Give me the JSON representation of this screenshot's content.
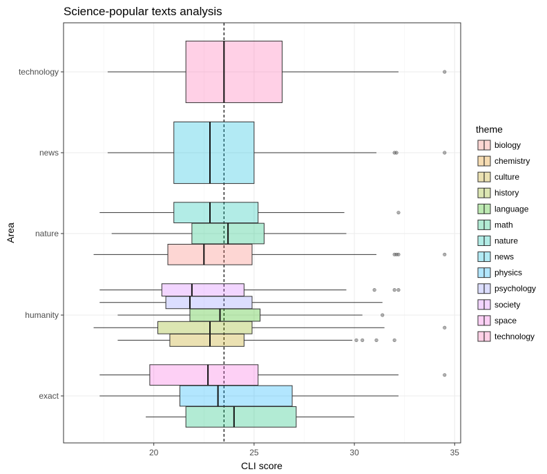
{
  "chart_data": {
    "type": "boxplot",
    "title": "Science-popular texts analysis",
    "xlabel": "CLI score",
    "ylabel": "Area",
    "xlim": [
      15.5,
      35.3
    ],
    "xticks": [
      20,
      25,
      30,
      35
    ],
    "reference_line_x": 23.5,
    "grid": true,
    "legend_title": "theme",
    "legend_position": "right",
    "theme_colors": {
      "biology": "#F8766D",
      "chemistry": "#E18A00",
      "culture": "#BE9C00",
      "history": "#8CAB00",
      "language": "#24B700",
      "math": "#00BE70",
      "nature": "#00C1AB",
      "news": "#00BBDA",
      "physics": "#00ACFC",
      "psychology": "#8B93FF",
      "society": "#D575FE",
      "space": "#F962DD",
      "technology": "#FF65AC"
    },
    "categories": [
      "technology",
      "news",
      "nature",
      "humanity",
      "exact"
    ],
    "groups": [
      {
        "area": "technology",
        "boxes": [
          {
            "theme": "technology",
            "whisker_low": 17.7,
            "q1": 21.6,
            "median": 23.5,
            "q3": 26.4,
            "whisker_high": 32.2,
            "outliers": [
              34.5
            ]
          }
        ]
      },
      {
        "area": "news",
        "boxes": [
          {
            "theme": "news",
            "whisker_low": 17.7,
            "q1": 21.0,
            "median": 22.8,
            "q3": 25.0,
            "whisker_high": 31.1,
            "outliers": [
              32.0,
              32.1,
              34.5
            ]
          }
        ]
      },
      {
        "area": "nature",
        "boxes": [
          {
            "theme": "nature",
            "whisker_low": 17.3,
            "q1": 21.0,
            "median": 22.8,
            "q3": 25.2,
            "whisker_high": 29.5,
            "outliers": [
              32.2
            ]
          },
          {
            "theme": "math",
            "whisker_low": 17.9,
            "q1": 21.9,
            "median": 23.7,
            "q3": 25.5,
            "whisker_high": 29.6,
            "outliers": []
          },
          {
            "theme": "biology",
            "whisker_low": 17.0,
            "q1": 20.7,
            "median": 22.5,
            "q3": 24.9,
            "whisker_high": 31.1,
            "outliers": [
              32.0,
              32.1,
              32.2,
              34.5
            ]
          }
        ]
      },
      {
        "area": "humanity",
        "boxes": [
          {
            "theme": "society",
            "whisker_low": 17.3,
            "q1": 20.4,
            "median": 21.9,
            "q3": 24.5,
            "whisker_high": 29.6,
            "outliers": [
              31.0,
              32.0,
              32.2
            ]
          },
          {
            "theme": "psychology",
            "whisker_low": 17.3,
            "q1": 20.6,
            "median": 21.8,
            "q3": 24.9,
            "whisker_high": 31.4,
            "outliers": []
          },
          {
            "theme": "language",
            "whisker_low": 18.2,
            "q1": 21.8,
            "median": 23.3,
            "q3": 25.3,
            "whisker_high": 30.4,
            "outliers": [
              31.4
            ]
          },
          {
            "theme": "history",
            "whisker_low": 17.0,
            "q1": 20.2,
            "median": 22.8,
            "q3": 24.9,
            "whisker_high": 31.5,
            "outliers": [
              34.5
            ]
          },
          {
            "theme": "culture",
            "whisker_low": 18.2,
            "q1": 20.8,
            "median": 22.8,
            "q3": 24.5,
            "whisker_high": 29.9,
            "outliers": [
              30.1,
              30.4,
              31.1,
              32.0
            ]
          }
        ]
      },
      {
        "area": "exact",
        "boxes": [
          {
            "theme": "space",
            "whisker_low": 17.3,
            "q1": 19.8,
            "median": 22.7,
            "q3": 25.2,
            "whisker_high": 32.2,
            "outliers": [
              34.5
            ]
          },
          {
            "theme": "physics",
            "whisker_low": 17.3,
            "q1": 21.3,
            "median": 23.2,
            "q3": 26.9,
            "whisker_high": 32.2,
            "outliers": []
          },
          {
            "theme": "math",
            "whisker_low": 19.6,
            "q1": 21.6,
            "median": 24.0,
            "q3": 27.1,
            "whisker_high": 30.0,
            "outliers": []
          }
        ]
      }
    ],
    "legend": [
      "biology",
      "chemistry",
      "culture",
      "history",
      "language",
      "math",
      "nature",
      "news",
      "physics",
      "psychology",
      "society",
      "space",
      "technology"
    ]
  }
}
